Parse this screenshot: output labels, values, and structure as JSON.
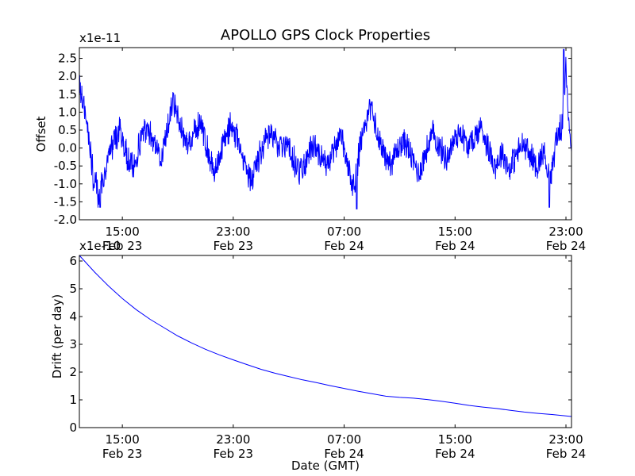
{
  "figure": {
    "title": "APOLLO GPS Clock Properties",
    "xlabel": "Date (GMT)",
    "x_ticks": [
      {
        "hour": 15,
        "time": "15:00",
        "date": "Feb 23"
      },
      {
        "hour": 23,
        "time": "23:00",
        "date": "Feb 23"
      },
      {
        "hour": 31,
        "time": "07:00",
        "date": "Feb 24"
      },
      {
        "hour": 39,
        "time": "15:00",
        "date": "Feb 24"
      },
      {
        "hour": 47,
        "time": "23:00",
        "date": "Feb 24"
      }
    ],
    "line_color": "#0000ff"
  },
  "chart_data": [
    {
      "type": "line",
      "name": "offset",
      "ylabel": "Offset",
      "scale_label": "x1e-11",
      "xlim_hours": [
        11.9,
        47.4
      ],
      "ylim": [
        -2.0,
        2.8
      ],
      "y_ticks": [
        "2.5",
        "2.0",
        "1.5",
        "1.0",
        "0.5",
        "0.0",
        "-0.5",
        "-1.0",
        "-1.5",
        "-2.0"
      ],
      "y_tick_values": [
        2.5,
        2.0,
        1.5,
        1.0,
        0.5,
        0.0,
        -0.5,
        -1.0,
        -1.5,
        -2.0
      ],
      "anchors": [
        [
          11.9,
          1.7
        ],
        [
          12.2,
          1.2
        ],
        [
          12.5,
          0.6
        ],
        [
          12.9,
          -0.8
        ],
        [
          13.3,
          -1.3
        ],
        [
          13.8,
          -0.6
        ],
        [
          14.3,
          0.1
        ],
        [
          14.8,
          0.5
        ],
        [
          15.3,
          -0.2
        ],
        [
          15.8,
          -0.6
        ],
        [
          16.3,
          0.2
        ],
        [
          16.8,
          0.6
        ],
        [
          17.3,
          0.2
        ],
        [
          17.8,
          -0.4
        ],
        [
          18.3,
          0.7
        ],
        [
          18.7,
          1.3
        ],
        [
          19.2,
          0.6
        ],
        [
          19.7,
          0.1
        ],
        [
          20.2,
          0.5
        ],
        [
          20.7,
          0.7
        ],
        [
          21.2,
          -0.2
        ],
        [
          21.7,
          -0.6
        ],
        [
          22.3,
          0.2
        ],
        [
          22.8,
          0.6
        ],
        [
          23.3,
          0.3
        ],
        [
          23.8,
          -0.4
        ],
        [
          24.3,
          -0.9
        ],
        [
          24.8,
          -0.3
        ],
        [
          25.3,
          0.2
        ],
        [
          25.8,
          0.4
        ],
        [
          26.3,
          0.0
        ],
        [
          26.8,
          0.2
        ],
        [
          27.3,
          -0.3
        ],
        [
          27.8,
          -0.7
        ],
        [
          28.3,
          -0.3
        ],
        [
          28.8,
          0.1
        ],
        [
          29.3,
          -0.2
        ],
        [
          29.8,
          -0.5
        ],
        [
          30.3,
          -0.1
        ],
        [
          30.8,
          0.3
        ],
        [
          31.3,
          -0.6
        ],
        [
          31.7,
          -1.1
        ],
        [
          32.2,
          0.2
        ],
        [
          32.7,
          0.9
        ],
        [
          33.0,
          1.1
        ],
        [
          33.4,
          0.4
        ],
        [
          33.9,
          -0.2
        ],
        [
          34.4,
          -0.4
        ],
        [
          34.9,
          0.0
        ],
        [
          35.4,
          0.2
        ],
        [
          35.9,
          -0.3
        ],
        [
          36.4,
          -0.7
        ],
        [
          36.9,
          -0.1
        ],
        [
          37.4,
          0.4
        ],
        [
          37.9,
          0.0
        ],
        [
          38.4,
          -0.3
        ],
        [
          38.9,
          0.2
        ],
        [
          39.4,
          0.5
        ],
        [
          39.9,
          0.0
        ],
        [
          40.4,
          0.3
        ],
        [
          40.9,
          0.6
        ],
        [
          41.4,
          0.0
        ],
        [
          41.9,
          -0.5
        ],
        [
          42.4,
          -0.1
        ],
        [
          42.9,
          -0.6
        ],
        [
          43.4,
          -0.2
        ],
        [
          43.9,
          0.1
        ],
        [
          44.4,
          -0.2
        ],
        [
          44.9,
          -0.5
        ],
        [
          45.4,
          -0.1
        ],
        [
          45.9,
          -0.9
        ],
        [
          46.3,
          0.3
        ],
        [
          46.7,
          0.6
        ],
        [
          47.0,
          2.2
        ],
        [
          47.2,
          0.8
        ],
        [
          47.4,
          0.1
        ]
      ],
      "noise_amplitude": 0.28,
      "notable_extremes": [
        [
          46.85,
          2.75
        ],
        [
          31.9,
          -1.7
        ],
        [
          13.4,
          -1.65
        ],
        [
          45.8,
          -1.65
        ]
      ]
    },
    {
      "type": "line",
      "name": "drift",
      "ylabel": "Drift (per day)",
      "scale_label": "x1e-10",
      "xlim_hours": [
        11.9,
        47.4
      ],
      "ylim": [
        0,
        6.2
      ],
      "y_ticks": [
        "6",
        "5",
        "4",
        "3",
        "2",
        "1",
        "0"
      ],
      "y_tick_values": [
        6,
        5,
        4,
        3,
        2,
        1,
        0
      ],
      "points": [
        [
          11.9,
          6.2
        ],
        [
          13.0,
          5.6
        ],
        [
          14.0,
          5.1
        ],
        [
          15.0,
          4.65
        ],
        [
          16.0,
          4.25
        ],
        [
          17.0,
          3.9
        ],
        [
          18.0,
          3.6
        ],
        [
          19.0,
          3.3
        ],
        [
          20.0,
          3.05
        ],
        [
          21.0,
          2.82
        ],
        [
          22.0,
          2.62
        ],
        [
          23.0,
          2.44
        ],
        [
          24.0,
          2.27
        ],
        [
          25.0,
          2.1
        ],
        [
          26.0,
          1.96
        ],
        [
          27.0,
          1.84
        ],
        [
          28.0,
          1.72
        ],
        [
          29.0,
          1.62
        ],
        [
          30.0,
          1.51
        ],
        [
          31.0,
          1.41
        ],
        [
          32.0,
          1.31
        ],
        [
          33.0,
          1.22
        ],
        [
          34.0,
          1.13
        ],
        [
          35.0,
          1.09
        ],
        [
          36.0,
          1.06
        ],
        [
          37.0,
          1.01
        ],
        [
          38.0,
          0.95
        ],
        [
          39.0,
          0.88
        ],
        [
          40.0,
          0.8
        ],
        [
          41.0,
          0.74
        ],
        [
          42.0,
          0.69
        ],
        [
          43.0,
          0.62
        ],
        [
          44.0,
          0.56
        ],
        [
          45.0,
          0.51
        ],
        [
          46.0,
          0.47
        ],
        [
          47.0,
          0.42
        ],
        [
          47.4,
          0.4
        ]
      ]
    }
  ]
}
